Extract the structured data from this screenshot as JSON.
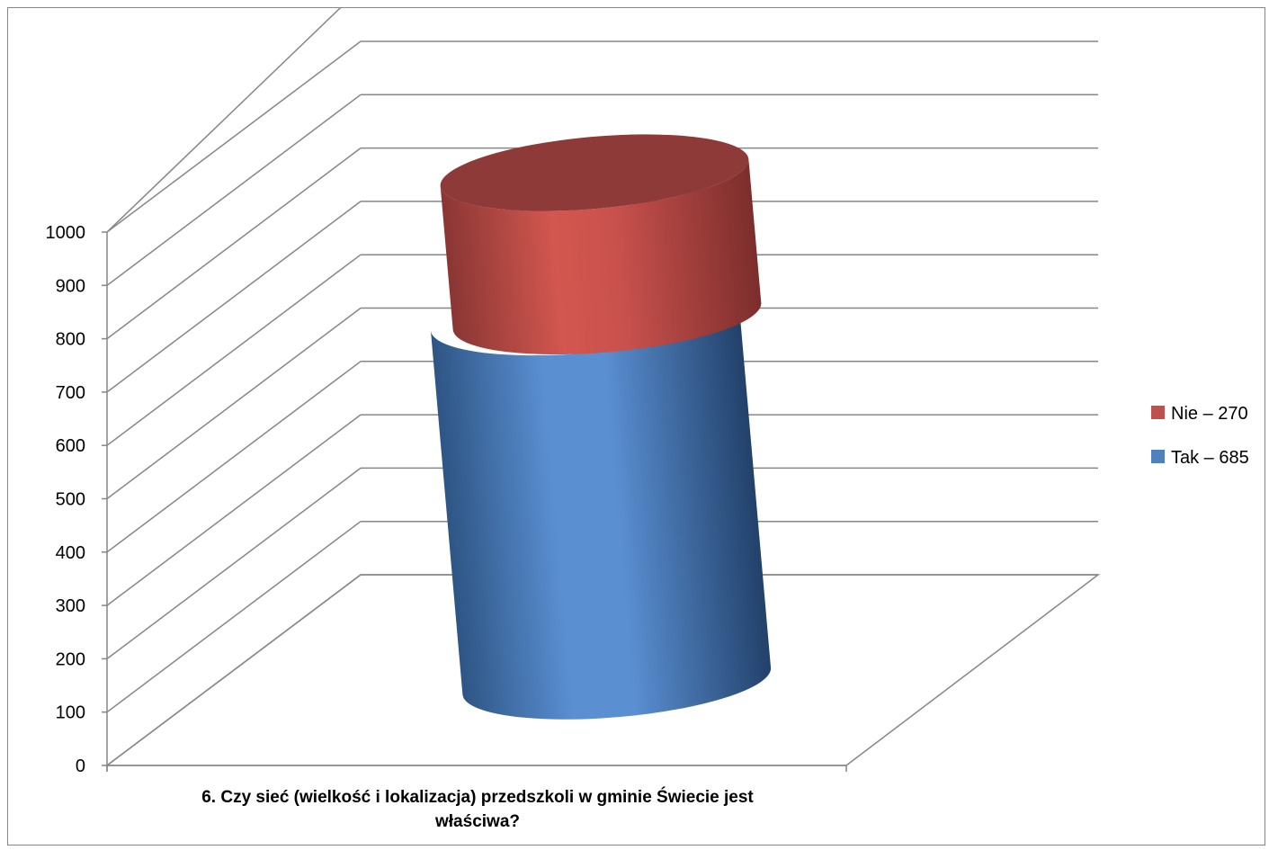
{
  "chart_data": {
    "type": "bar",
    "categories": [
      "6. Czy sieć (wielkość i lokalizacja) przedszkoli w gminie Świecie jest właściwa?"
    ],
    "category_label_lines": [
      "6. Czy sieć (wielkość i lokalizacja) przedszkoli w gminie Świecie jest",
      "właściwa?"
    ],
    "series": [
      {
        "name": "Tak – 685",
        "values": [
          685
        ],
        "color": "#4f81bd"
      },
      {
        "name": "Nie – 270",
        "values": [
          270
        ],
        "color": "#c0504d"
      }
    ],
    "stacked": true,
    "shape": "cylinder-3d",
    "yticks": [
      0,
      100,
      200,
      300,
      400,
      500,
      600,
      700,
      800,
      900,
      1000
    ],
    "ylim": [
      0,
      1000
    ],
    "grid": true,
    "legend": "right",
    "title": "",
    "xlabel": "",
    "ylabel": ""
  }
}
